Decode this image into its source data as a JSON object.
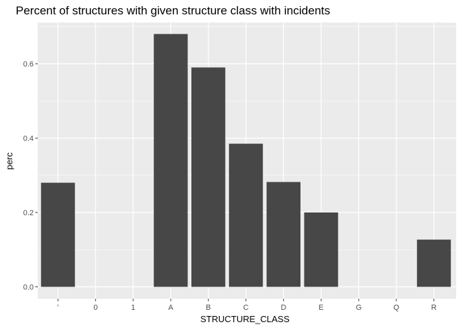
{
  "chart_data": {
    "type": "bar",
    "title": "Percent of structures with given structure class with incidents",
    "xlabel": "STRUCTURE_CLASS",
    "ylabel": "perc",
    "categories": [
      "'",
      "0",
      "1",
      "A",
      "B",
      "C",
      "D",
      "E",
      "G",
      "Q",
      "R"
    ],
    "values": [
      0.28,
      0.0,
      0.0,
      0.68,
      0.59,
      0.385,
      0.282,
      0.2,
      0.0,
      0.0,
      0.127
    ],
    "yticks": [
      "0.0",
      "0.2",
      "0.4",
      "0.6"
    ],
    "ylim": [
      0,
      0.71
    ],
    "grid": true,
    "legend": "none",
    "colors": {
      "bar": "#474747",
      "panel": "#ebebeb",
      "grid": "#ffffff"
    }
  }
}
